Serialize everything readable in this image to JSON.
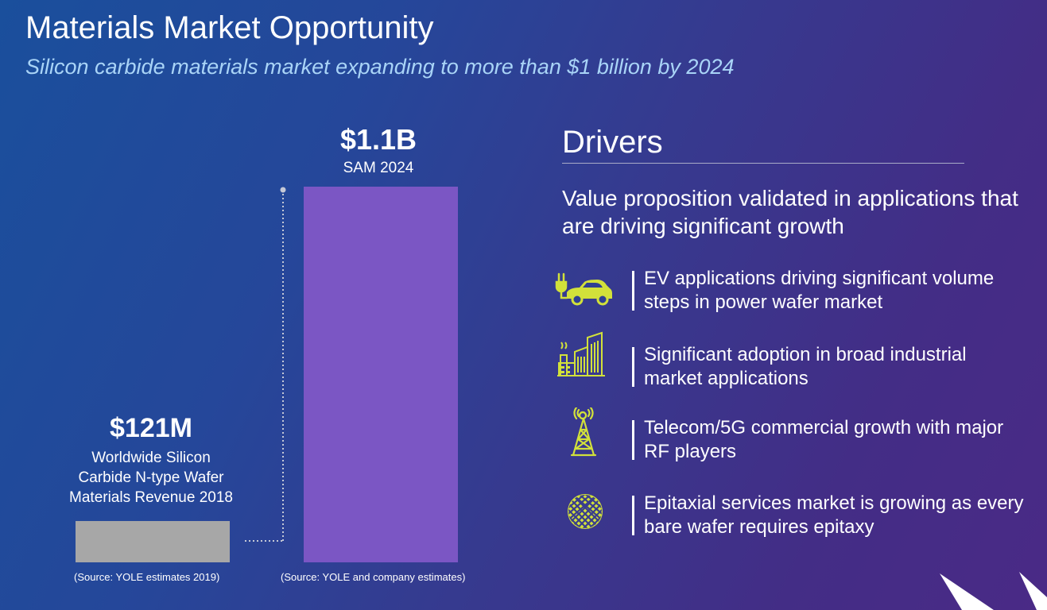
{
  "header": {
    "title": "Materials Market Opportunity",
    "subtitle": "Silicon carbide materials market expanding to more than $1 billion by 2024"
  },
  "chart_data": {
    "type": "bar",
    "categories": [
      "2018",
      "2024"
    ],
    "values": [
      121,
      1100
    ],
    "unit": "$M",
    "bars": [
      {
        "value": 121,
        "value_label": "$121M",
        "caption_lines": [
          "Worldwide Silicon",
          "Carbide N-type Wafer",
          "Materials Revenue 2018"
        ],
        "color": "#a7a7a7",
        "source": "(Source: YOLE estimates 2019)"
      },
      {
        "value": 1100,
        "value_label": "$1.1B",
        "caption_lines": [
          "SAM 2024"
        ],
        "color": "#7b56c4",
        "source": "(Source: YOLE and company estimates)"
      }
    ],
    "connector_color": "#c5c9d6"
  },
  "drivers": {
    "heading": "Drivers",
    "lead": "Value proposition validated in applications that are driving significant growth",
    "icon_color": "#d2e13a",
    "items": [
      {
        "icon": "ev-car-plug-icon",
        "text": "EV applications driving significant volume steps in power wafer market"
      },
      {
        "icon": "industrial-buildings-icon",
        "text": "Significant adoption in broad industrial market applications"
      },
      {
        "icon": "telecom-tower-icon",
        "text": "Telecom/5G commercial growth with major RF players"
      },
      {
        "icon": "wafer-grid-icon",
        "text": "Epitaxial services market is growing as every bare wafer requires epitaxy"
      }
    ]
  }
}
